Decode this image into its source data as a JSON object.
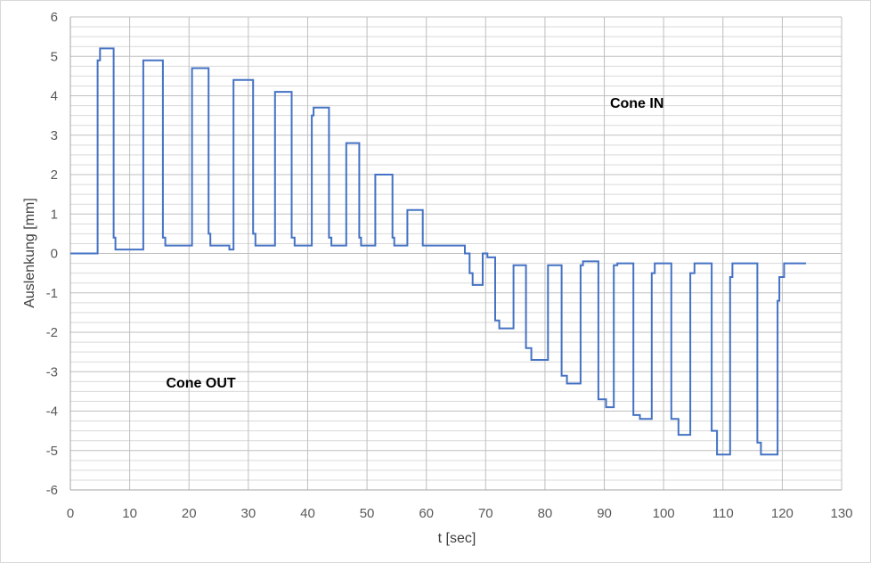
{
  "chart_data": {
    "type": "line",
    "xlabel": "t [sec]",
    "ylabel": "Auslenkung [mm]",
    "xlim": [
      0,
      130
    ],
    "ylim": [
      -6,
      6
    ],
    "x_ticks": [
      "0",
      "10",
      "20",
      "30",
      "40",
      "50",
      "60",
      "70",
      "80",
      "90",
      "100",
      "110",
      "120",
      "130"
    ],
    "y_ticks": [
      "6",
      "5",
      "4",
      "3",
      "2",
      "1",
      "0",
      "-1",
      "-2",
      "-3",
      "-4",
      "-5",
      "-6"
    ],
    "grid": true,
    "legend": "none",
    "annotations": [
      {
        "text": "Cone IN",
        "x": 95.5,
        "y": 3.7
      },
      {
        "text": "Cone OUT",
        "x": 22,
        "y": -3.4
      }
    ],
    "series_color": "#4472c4",
    "series": [
      {
        "points": [
          [
            0,
            0
          ],
          [
            4.6,
            0
          ],
          [
            4.6,
            4.9
          ],
          [
            5,
            4.9
          ],
          [
            5,
            5.2
          ],
          [
            7.3,
            5.2
          ],
          [
            7.3,
            0.4
          ],
          [
            7.6,
            0.4
          ],
          [
            7.6,
            0.1
          ],
          [
            12.3,
            0.1
          ],
          [
            12.3,
            4.9
          ],
          [
            15.6,
            4.9
          ],
          [
            15.6,
            0.4
          ],
          [
            16,
            0.4
          ],
          [
            16,
            0.2
          ],
          [
            20.5,
            0.2
          ],
          [
            20.5,
            4.7
          ],
          [
            23.3,
            4.7
          ],
          [
            23.3,
            0.5
          ],
          [
            23.6,
            0.5
          ],
          [
            23.6,
            0.2
          ],
          [
            26.8,
            0.2
          ],
          [
            26.8,
            0.1
          ],
          [
            27.5,
            0.1
          ],
          [
            27.5,
            4.4
          ],
          [
            30.8,
            4.4
          ],
          [
            30.8,
            0.5
          ],
          [
            31.2,
            0.5
          ],
          [
            31.2,
            0.2
          ],
          [
            34.5,
            0.2
          ],
          [
            34.5,
            4.1
          ],
          [
            37.3,
            4.1
          ],
          [
            37.3,
            0.4
          ],
          [
            37.8,
            0.4
          ],
          [
            37.8,
            0.2
          ],
          [
            40.7,
            0.2
          ],
          [
            40.7,
            3.5
          ],
          [
            41,
            3.5
          ],
          [
            41,
            3.7
          ],
          [
            43.6,
            3.7
          ],
          [
            43.6,
            0.4
          ],
          [
            44,
            0.4
          ],
          [
            44,
            0.2
          ],
          [
            46.5,
            0.2
          ],
          [
            46.5,
            2.8
          ],
          [
            48.7,
            2.8
          ],
          [
            48.7,
            0.4
          ],
          [
            49,
            0.4
          ],
          [
            49,
            0.2
          ],
          [
            51.4,
            0.2
          ],
          [
            51.4,
            2
          ],
          [
            54.3,
            2
          ],
          [
            54.3,
            0.4
          ],
          [
            54.6,
            0.4
          ],
          [
            54.6,
            0.2
          ],
          [
            56.8,
            0.2
          ],
          [
            56.8,
            1.1
          ],
          [
            59.4,
            1.1
          ],
          [
            59.4,
            0.2
          ],
          [
            66.5,
            0.2
          ],
          [
            66.5,
            0
          ],
          [
            67.3,
            0
          ],
          [
            67.3,
            -0.5
          ],
          [
            67.8,
            -0.5
          ],
          [
            67.8,
            -0.8
          ],
          [
            69.5,
            -0.8
          ],
          [
            69.5,
            0
          ],
          [
            70.3,
            0
          ],
          [
            70.3,
            -0.1
          ],
          [
            71.6,
            -0.1
          ],
          [
            71.6,
            -1.7
          ],
          [
            72.3,
            -1.7
          ],
          [
            72.3,
            -1.9
          ],
          [
            74.7,
            -1.9
          ],
          [
            74.7,
            -0.3
          ],
          [
            76.8,
            -0.3
          ],
          [
            76.8,
            -2.4
          ],
          [
            77.7,
            -2.4
          ],
          [
            77.7,
            -2.7
          ],
          [
            80.5,
            -2.7
          ],
          [
            80.5,
            -0.3
          ],
          [
            82.8,
            -0.3
          ],
          [
            82.8,
            -3.1
          ],
          [
            83.7,
            -3.1
          ],
          [
            83.7,
            -3.3
          ],
          [
            86,
            -3.3
          ],
          [
            86,
            -0.3
          ],
          [
            86.4,
            -0.3
          ],
          [
            86.4,
            -0.2
          ],
          [
            89,
            -0.2
          ],
          [
            89,
            -3.7
          ],
          [
            90.3,
            -3.7
          ],
          [
            90.3,
            -3.9
          ],
          [
            91.6,
            -3.9
          ],
          [
            91.6,
            -0.3
          ],
          [
            92.2,
            -0.3
          ],
          [
            92.2,
            -0.25
          ],
          [
            94.9,
            -0.25
          ],
          [
            94.9,
            -4.1
          ],
          [
            96,
            -4.1
          ],
          [
            96,
            -4.2
          ],
          [
            98,
            -4.2
          ],
          [
            98,
            -0.5
          ],
          [
            98.5,
            -0.5
          ],
          [
            98.5,
            -0.25
          ],
          [
            101.3,
            -0.25
          ],
          [
            101.3,
            -4.2
          ],
          [
            102.5,
            -4.2
          ],
          [
            102.5,
            -4.6
          ],
          [
            104.5,
            -4.6
          ],
          [
            104.5,
            -0.5
          ],
          [
            105.2,
            -0.5
          ],
          [
            105.2,
            -0.25
          ],
          [
            108.1,
            -0.25
          ],
          [
            108.1,
            -4.5
          ],
          [
            109,
            -4.5
          ],
          [
            109,
            -5.1
          ],
          [
            111.2,
            -5.1
          ],
          [
            111.2,
            -0.6
          ],
          [
            111.6,
            -0.6
          ],
          [
            111.6,
            -0.25
          ],
          [
            115.8,
            -0.25
          ],
          [
            115.8,
            -4.8
          ],
          [
            116.4,
            -4.8
          ],
          [
            116.4,
            -5.1
          ],
          [
            119.2,
            -5.1
          ],
          [
            119.2,
            -1.2
          ],
          [
            119.5,
            -1.2
          ],
          [
            119.5,
            -0.6
          ],
          [
            120.3,
            -0.6
          ],
          [
            120.3,
            -0.25
          ],
          [
            124,
            -0.25
          ]
        ]
      }
    ]
  }
}
